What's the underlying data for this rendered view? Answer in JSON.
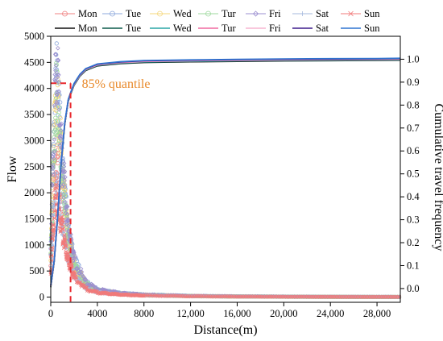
{
  "chart_data": {
    "type": "scatter+line",
    "title": "",
    "xlabel": "Distance(m)",
    "ylabel_left": "Flow",
    "ylabel_right": "Cumulative travel frequency",
    "xlim": [
      0,
      30000
    ],
    "ylim_left": [
      -100,
      5000
    ],
    "ylim_right": [
      -0.06,
      1.1
    ],
    "x_ticks": [
      0,
      4000,
      8000,
      12000,
      16000,
      20000,
      24000,
      28000
    ],
    "x_tick_labels": [
      "0",
      "4000",
      "8000",
      "12,000",
      "16,000",
      "20,000",
      "24,000",
      "28,000"
    ],
    "y_left_ticks": [
      0,
      500,
      1000,
      1500,
      2000,
      2500,
      3000,
      3500,
      4000,
      4500,
      5000
    ],
    "y_left_tick_labels": [
      "0",
      "500",
      "1000",
      "1500",
      "2000",
      "2500",
      "3000",
      "3500",
      "4000",
      "4500",
      "5000"
    ],
    "y_right_ticks": [
      0.0,
      0.1,
      0.2,
      0.3,
      0.4,
      0.5,
      0.6,
      0.7,
      0.8,
      0.9,
      1.0
    ],
    "y_right_tick_labels": [
      "0.0",
      "0.1",
      "0.2",
      "0.3",
      "0.4",
      "0.5",
      "0.6",
      "0.7",
      "0.8",
      "0.9",
      "1.0"
    ],
    "grid": false,
    "legend_position": "top",
    "annotation": {
      "text": "85% quantile",
      "color": "#e8892a",
      "x": 1700,
      "y_left": 4100
    },
    "quantile_line_color": "#e8282e",
    "flow_series": [
      {
        "name": "Mon",
        "color": "#f08080",
        "marker": "circle",
        "peak_x": 500,
        "peak_y": 2700,
        "points": [
          [
            0,
            600
          ],
          [
            200,
            1500
          ],
          [
            400,
            2500
          ],
          [
            500,
            2700
          ],
          [
            700,
            2300
          ],
          [
            1000,
            1600
          ],
          [
            1500,
            900
          ],
          [
            2000,
            500
          ],
          [
            3000,
            200
          ],
          [
            4000,
            110
          ],
          [
            6000,
            60
          ],
          [
            8000,
            40
          ],
          [
            12000,
            20
          ],
          [
            16000,
            12
          ],
          [
            20000,
            8
          ],
          [
            24000,
            5
          ],
          [
            28000,
            3
          ],
          [
            30000,
            2
          ]
        ]
      },
      {
        "name": "Tue",
        "color": "#8ea9dc",
        "marker": "circle",
        "peak_x": 550,
        "peak_y": 4300,
        "points": [
          [
            0,
            900
          ],
          [
            200,
            2500
          ],
          [
            400,
            3900
          ],
          [
            550,
            4300
          ],
          [
            700,
            3700
          ],
          [
            1000,
            2500
          ],
          [
            1500,
            1300
          ],
          [
            2000,
            700
          ],
          [
            3000,
            280
          ],
          [
            4000,
            140
          ],
          [
            6000,
            70
          ],
          [
            8000,
            45
          ],
          [
            12000,
            22
          ],
          [
            16000,
            13
          ],
          [
            20000,
            9
          ],
          [
            24000,
            6
          ],
          [
            28000,
            4
          ],
          [
            30000,
            3
          ]
        ]
      },
      {
        "name": "Wed",
        "color": "#f5d77a",
        "marker": "circle",
        "peak_x": 520,
        "peak_y": 4000,
        "points": [
          [
            0,
            850
          ],
          [
            200,
            2300
          ],
          [
            400,
            3700
          ],
          [
            520,
            4000
          ],
          [
            700,
            3500
          ],
          [
            1000,
            2300
          ],
          [
            1500,
            1200
          ],
          [
            2000,
            650
          ],
          [
            3000,
            260
          ],
          [
            4000,
            130
          ],
          [
            6000,
            65
          ],
          [
            8000,
            42
          ],
          [
            12000,
            21
          ],
          [
            16000,
            12
          ],
          [
            20000,
            8
          ],
          [
            24000,
            5
          ],
          [
            28000,
            3
          ],
          [
            30000,
            2
          ]
        ]
      },
      {
        "name": "Tur",
        "color": "#9ed99e",
        "marker": "circle",
        "peak_x": 500,
        "peak_y": 3900,
        "points": [
          [
            0,
            800
          ],
          [
            200,
            2200
          ],
          [
            400,
            3600
          ],
          [
            500,
            3900
          ],
          [
            700,
            3400
          ],
          [
            1000,
            2200
          ],
          [
            1500,
            1150
          ],
          [
            2000,
            620
          ],
          [
            3000,
            250
          ],
          [
            4000,
            125
          ],
          [
            6000,
            62
          ],
          [
            8000,
            40
          ],
          [
            12000,
            20
          ],
          [
            16000,
            12
          ],
          [
            20000,
            8
          ],
          [
            24000,
            5
          ],
          [
            28000,
            3
          ],
          [
            30000,
            2
          ]
        ]
      },
      {
        "name": "Fri",
        "color": "#9b8fd0",
        "marker": "diamond",
        "peak_x": 560,
        "peak_y": 4350,
        "points": [
          [
            0,
            950
          ],
          [
            200,
            2600
          ],
          [
            400,
            4000
          ],
          [
            560,
            4350
          ],
          [
            700,
            3800
          ],
          [
            1000,
            2600
          ],
          [
            1500,
            1350
          ],
          [
            2000,
            720
          ],
          [
            3000,
            290
          ],
          [
            4000,
            150
          ],
          [
            6000,
            72
          ],
          [
            8000,
            46
          ],
          [
            12000,
            23
          ],
          [
            16000,
            14
          ],
          [
            20000,
            9
          ],
          [
            24000,
            6
          ],
          [
            28000,
            4
          ],
          [
            30000,
            3
          ]
        ]
      },
      {
        "name": "Sat",
        "color": "#a5b8de",
        "marker": "plus",
        "peak_x": 450,
        "peak_y": 2100,
        "points": [
          [
            0,
            500
          ],
          [
            200,
            1300
          ],
          [
            400,
            2000
          ],
          [
            450,
            2100
          ],
          [
            700,
            1800
          ],
          [
            1000,
            1300
          ],
          [
            1500,
            750
          ],
          [
            2000,
            420
          ],
          [
            3000,
            170
          ],
          [
            4000,
            90
          ],
          [
            6000,
            50
          ],
          [
            8000,
            32
          ],
          [
            12000,
            16
          ],
          [
            16000,
            10
          ],
          [
            20000,
            6
          ],
          [
            24000,
            4
          ],
          [
            28000,
            3
          ],
          [
            30000,
            2
          ]
        ]
      },
      {
        "name": "Sun",
        "color": "#f07a7a",
        "marker": "star",
        "peak_x": 420,
        "peak_y": 1900,
        "points": [
          [
            0,
            450
          ],
          [
            200,
            1200
          ],
          [
            400,
            1850
          ],
          [
            420,
            1900
          ],
          [
            700,
            1650
          ],
          [
            1000,
            1200
          ],
          [
            1500,
            700
          ],
          [
            2000,
            400
          ],
          [
            3000,
            160
          ],
          [
            4000,
            85
          ],
          [
            6000,
            48
          ],
          [
            8000,
            30
          ],
          [
            12000,
            15
          ],
          [
            16000,
            9
          ],
          [
            20000,
            6
          ],
          [
            24000,
            4
          ],
          [
            28000,
            2
          ],
          [
            30000,
            2
          ]
        ]
      }
    ],
    "cdf_series": [
      {
        "name": "Mon",
        "color": "#111111"
      },
      {
        "name": "Tue",
        "color": "#0b5a4a"
      },
      {
        "name": "Wed",
        "color": "#2aa6a6"
      },
      {
        "name": "Tur",
        "color": "#f06aa0"
      },
      {
        "name": "Fri",
        "color": "#f7b6d0"
      },
      {
        "name": "Sat",
        "color": "#3d1c8c"
      },
      {
        "name": "Sun",
        "color": "#2f74d0"
      }
    ],
    "cdf_points": [
      [
        0,
        0.01
      ],
      [
        300,
        0.12
      ],
      [
        600,
        0.32
      ],
      [
        900,
        0.55
      ],
      [
        1200,
        0.72
      ],
      [
        1500,
        0.82
      ],
      [
        1700,
        0.85
      ],
      [
        2000,
        0.89
      ],
      [
        2500,
        0.93
      ],
      [
        3000,
        0.955
      ],
      [
        4000,
        0.975
      ],
      [
        6000,
        0.985
      ],
      [
        8000,
        0.99
      ],
      [
        12000,
        0.993
      ],
      [
        16000,
        0.995
      ],
      [
        20000,
        0.997
      ],
      [
        24000,
        0.998
      ],
      [
        28000,
        0.999
      ],
      [
        30000,
        1.0
      ]
    ]
  }
}
